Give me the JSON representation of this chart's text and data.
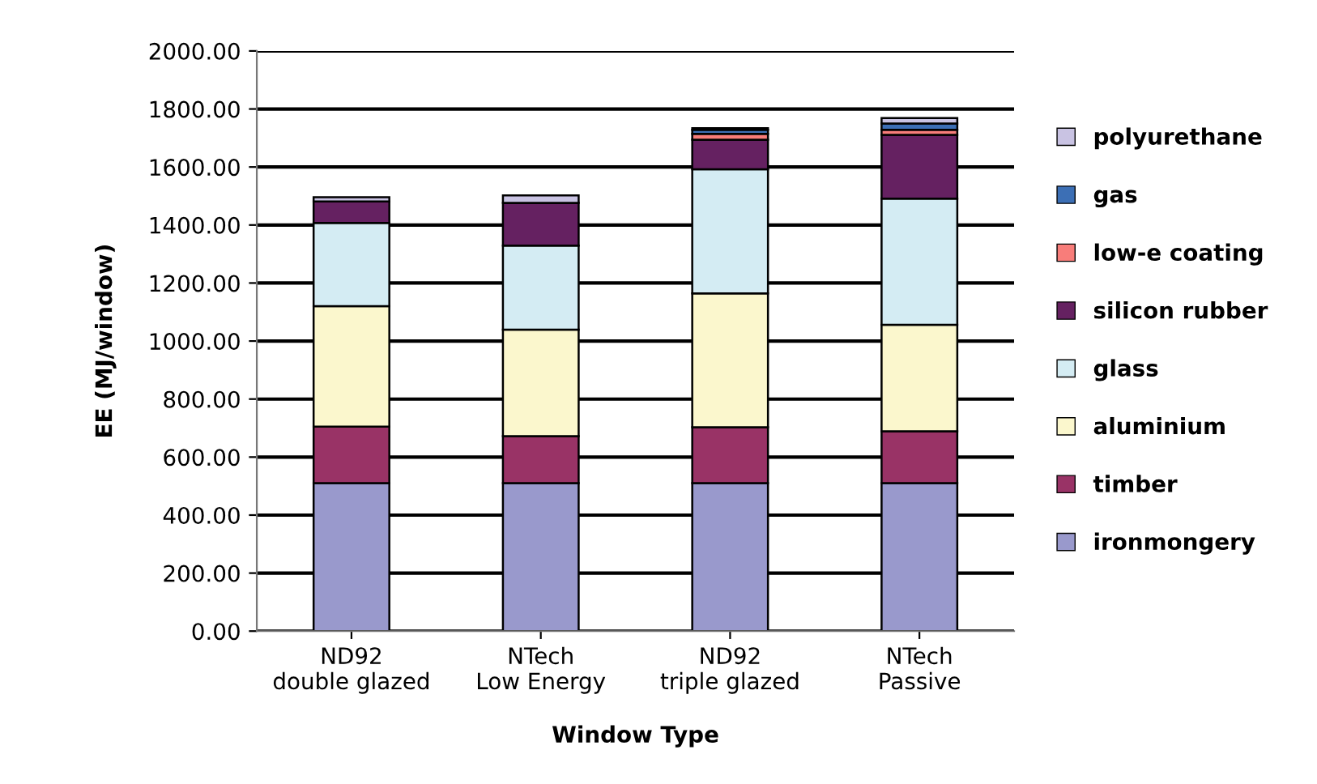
{
  "chart_data": {
    "type": "bar",
    "stacked": true,
    "xlabel": "Window Type",
    "ylabel": "EE (MJ/window)",
    "categories": [
      "ND92\ndouble glazed",
      "NTech\nLow Energy",
      "ND92\ntriple glazed",
      "NTech\nPassive"
    ],
    "series": [
      {
        "name": "ironmongery",
        "color": "#9999cc",
        "values": [
          510,
          510,
          510,
          510
        ]
      },
      {
        "name": "timber",
        "color": "#993366",
        "values": [
          195,
          162,
          193,
          179
        ]
      },
      {
        "name": "aluminium",
        "color": "#fbf7cd",
        "values": [
          415,
          367,
          461,
          367
        ]
      },
      {
        "name": "glass",
        "color": "#d4ecf3",
        "values": [
          287,
          290,
          428,
          435
        ]
      },
      {
        "name": "silicon rubber",
        "color": "#652161",
        "values": [
          74,
          147,
          102,
          220
        ]
      },
      {
        "name": "low-e coating",
        "color": "#f87d7a",
        "values": [
          null,
          null,
          20,
          17
        ]
      },
      {
        "name": "gas",
        "color": "#3c6fb5",
        "values": [
          null,
          null,
          14,
          22
        ]
      },
      {
        "name": "polyurethane",
        "color": "#c9c3e3",
        "values": [
          15,
          26,
          6,
          19
        ]
      }
    ],
    "ylim": [
      0,
      2000
    ],
    "yticks": [
      {
        "value": 0,
        "label": "0.00"
      },
      {
        "value": 200,
        "label": "200.00"
      },
      {
        "value": 400,
        "label": "400.00"
      },
      {
        "value": 600,
        "label": "600.00"
      },
      {
        "value": 800,
        "label": "800.00"
      },
      {
        "value": 1000,
        "label": "1000.00"
      },
      {
        "value": 1200,
        "label": "1200.00"
      },
      {
        "value": 1400,
        "label": "1400.00"
      },
      {
        "value": 1600,
        "label": "1600.00"
      },
      {
        "value": 1800,
        "label": "1800.00"
      },
      {
        "value": 2000,
        "label": "2000.00"
      }
    ],
    "grid": "y",
    "legend": "right"
  }
}
